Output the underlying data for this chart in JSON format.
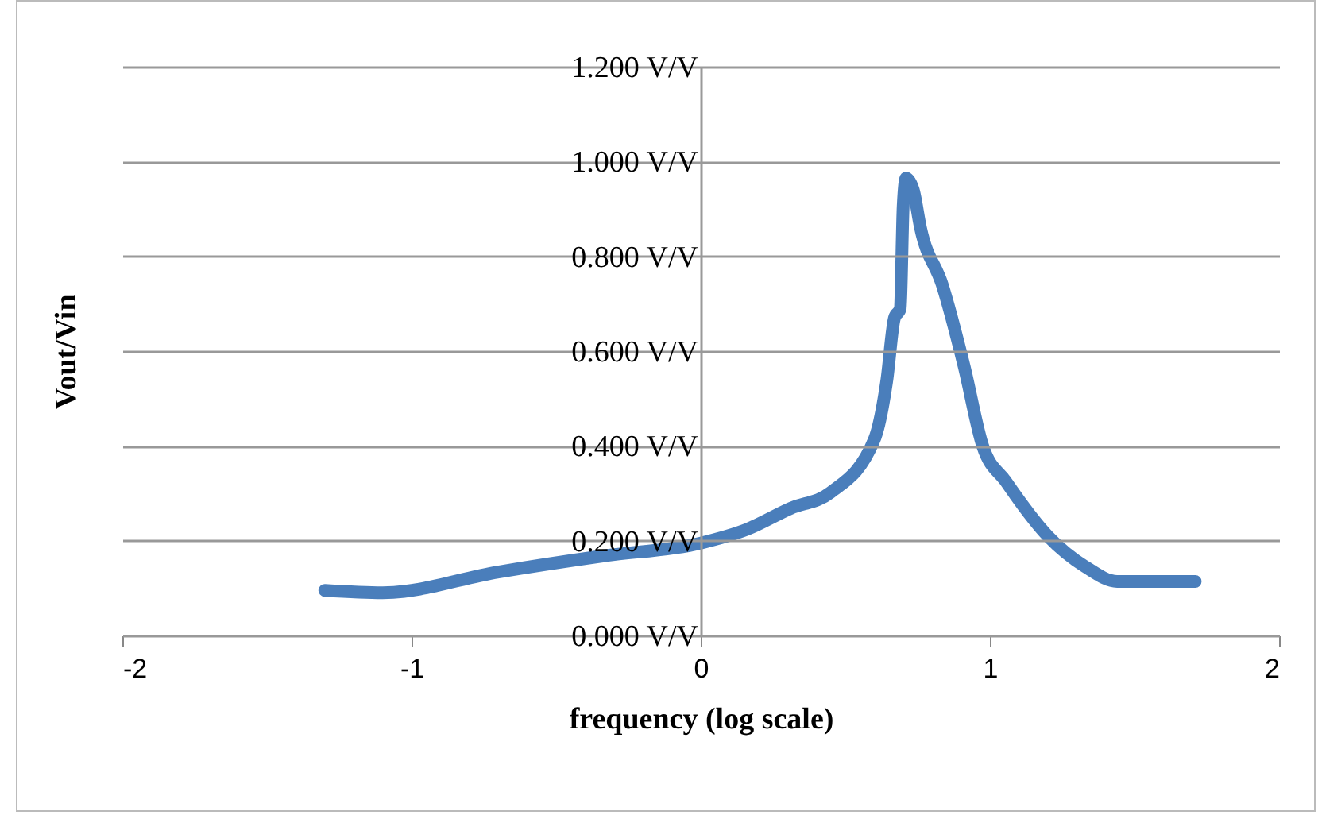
{
  "chart_data": {
    "type": "line",
    "xlabel": "frequency (log scale)",
    "ylabel": "Vout/Vin",
    "x": [
      -1.3,
      -1.1,
      -0.7,
      -0.335,
      0,
      0.16,
      0.31,
      0.45,
      0.6,
      0.643,
      0.67,
      0.69,
      0.7,
      0.71,
      0.735,
      0.76,
      0.835,
      0.91,
      0.975,
      1.055,
      1.2,
      1.33,
      1.44,
      1.71
    ],
    "series": [
      {
        "color": "#4a7ebb",
        "values": [
          0.095,
          0.09,
          0.134,
          0.168,
          0.195,
          0.224,
          0.268,
          0.302,
          0.413,
          0.536,
          0.67,
          0.69,
          0.905,
          0.965,
          0.94,
          0.86,
          0.74,
          0.57,
          0.4,
          0.325,
          0.21,
          0.145,
          0.114,
          0.114
        ]
      }
    ],
    "xlim": [
      -2,
      2
    ],
    "xticks": [
      -2,
      -1,
      0,
      1,
      2
    ],
    "ylim": [
      0,
      1.2
    ],
    "yticks": [
      {
        "value": 0,
        "label": "0.000 V/V"
      },
      {
        "value": 0.2,
        "label": "0.200 V/V"
      },
      {
        "value": 0.4,
        "label": "0.400 V/V"
      },
      {
        "value": 0.6,
        "label": "0.600 V/V"
      },
      {
        "value": 0.8,
        "label": "0.800 V/V"
      },
      {
        "value": 1,
        "label": "1.000 V/V"
      },
      {
        "value": 1.2,
        "label": "1.200 V/V"
      }
    ],
    "grid": "y",
    "marker": "none",
    "line_style": "solid"
  }
}
